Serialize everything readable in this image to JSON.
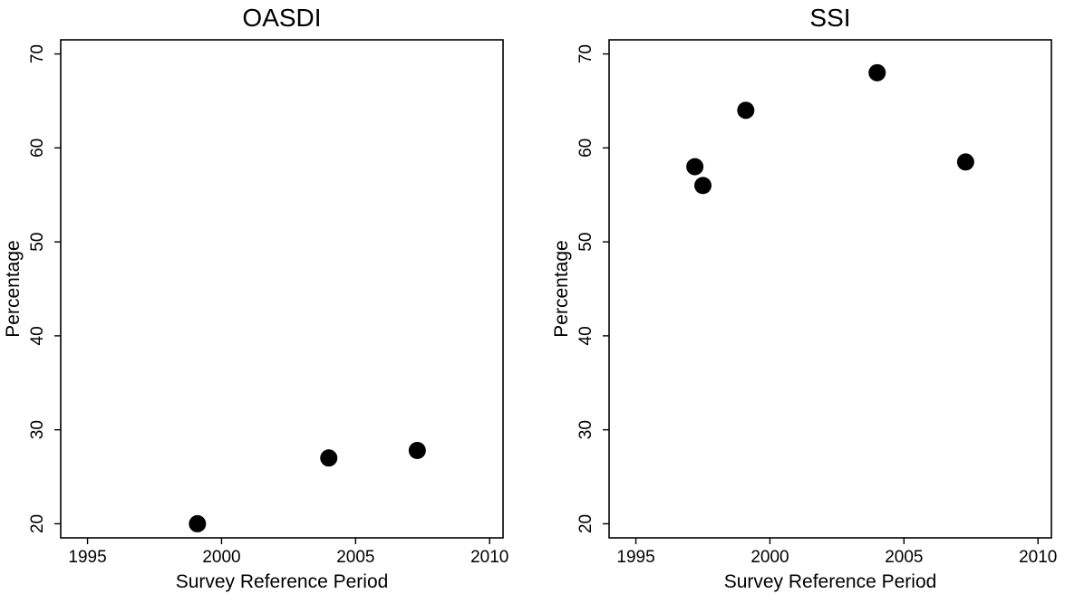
{
  "chart_data": [
    {
      "type": "scatter",
      "title": "OASDI",
      "xlabel": "Survey Reference Period",
      "ylabel": "Percentage",
      "xlim": [
        1994,
        2010.5
      ],
      "ylim": [
        18.5,
        71.5
      ],
      "xticks": [
        1995,
        2000,
        2005,
        2010
      ],
      "yticks": [
        20,
        30,
        40,
        50,
        60,
        70
      ],
      "grid": false,
      "points": [
        {
          "x": 1999.1,
          "y": 20.0
        },
        {
          "x": 2004.0,
          "y": 27.0
        },
        {
          "x": 2007.3,
          "y": 27.8
        }
      ]
    },
    {
      "type": "scatter",
      "title": "SSI",
      "xlabel": "Survey Reference Period",
      "ylabel": "Percentage",
      "xlim": [
        1994,
        2010.5
      ],
      "ylim": [
        18.5,
        71.5
      ],
      "xticks": [
        1995,
        2000,
        2005,
        2010
      ],
      "yticks": [
        20,
        30,
        40,
        50,
        60,
        70
      ],
      "grid": false,
      "points": [
        {
          "x": 1997.2,
          "y": 58.0
        },
        {
          "x": 1997.5,
          "y": 56.0
        },
        {
          "x": 1999.1,
          "y": 64.0
        },
        {
          "x": 2004.0,
          "y": 68.0
        },
        {
          "x": 2007.3,
          "y": 58.5
        }
      ]
    }
  ]
}
